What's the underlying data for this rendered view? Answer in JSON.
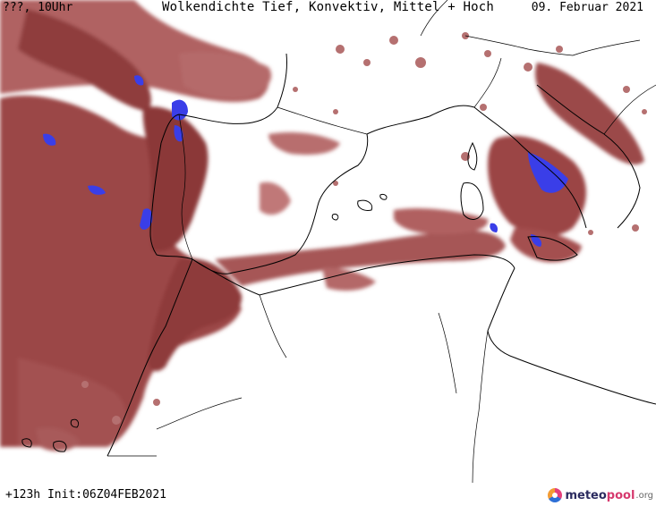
{
  "header": {
    "run_label": "???, 10Uhr",
    "title": "Wolkendichte  Tief, Konvektiv, Mittel + Hoch",
    "date": "09. Februar 2021"
  },
  "footer": {
    "forecast": "+123h Init:06Z04FEB2021",
    "logo_part1": "meteo",
    "logo_part2": "pool",
    "logo_part3": ".org"
  },
  "colors": {
    "cloud_dense": "#8e3a3a",
    "cloud_medium": "#a85656",
    "cloud_light": "#c58282",
    "precip_blue": "#3a3ee8",
    "coastline": "#000000"
  },
  "map": {
    "region": "Western Mediterranean, Iberian Peninsula, North Africa",
    "legend": []
  }
}
